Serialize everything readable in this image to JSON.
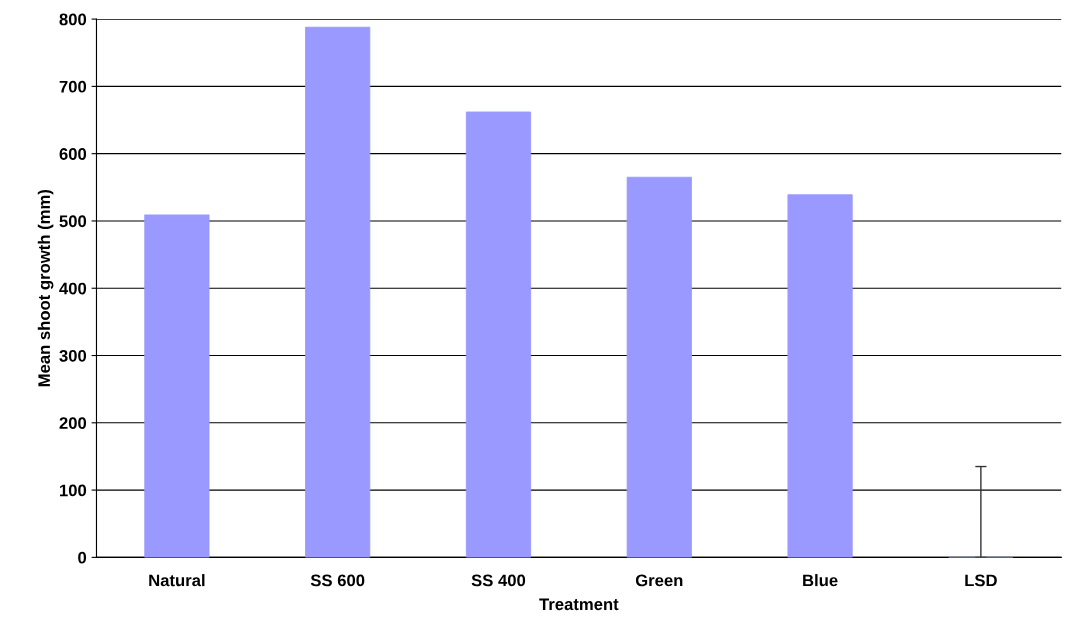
{
  "chart_data": {
    "type": "bar",
    "xlabel": "Treatment",
    "ylabel": "Mean shoot growth (mm)",
    "categories": [
      "Natural",
      "SS 600",
      "SS 400",
      "Green",
      "Blue",
      "LSD"
    ],
    "values": [
      509,
      788,
      662,
      565,
      539,
      0
    ],
    "errors": [
      null,
      null,
      null,
      null,
      null,
      [
        0,
        135
      ]
    ],
    "color": "#9999ff",
    "ylim": [
      0,
      800
    ],
    "yticks": [
      0,
      100,
      200,
      300,
      400,
      500,
      600,
      700,
      800
    ],
    "grid": "y"
  }
}
